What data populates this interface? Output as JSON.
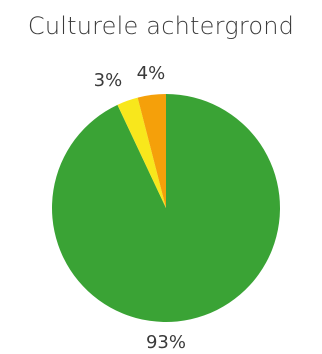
{
  "chart_data": {
    "type": "pie",
    "title": "Culturele achtergrond",
    "slices": [
      {
        "value": 93,
        "label": "93%",
        "color": "#3aa335"
      },
      {
        "value": 3,
        "label": "3%",
        "color": "#f8e71c"
      },
      {
        "value": 4,
        "label": "4%",
        "color": "#f5a00a"
      }
    ],
    "start_angle_deg": 0,
    "direction": "clockwise",
    "legend": "none"
  }
}
